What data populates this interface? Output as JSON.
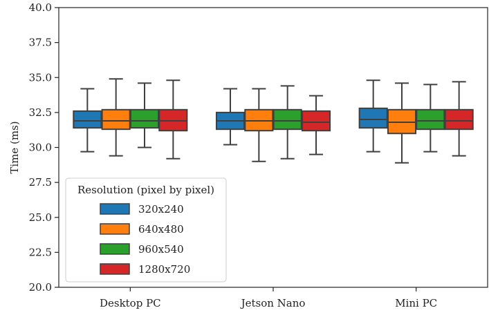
{
  "chart_data": {
    "type": "boxplot",
    "title": "",
    "xlabel": "",
    "ylabel": "Time (ms)",
    "ylim": [
      20.0,
      40.0
    ],
    "yticks": [
      "20.0",
      "22.5",
      "25.0",
      "27.5",
      "30.0",
      "32.5",
      "35.0",
      "37.5",
      "40.0"
    ],
    "grid": false,
    "categories": [
      "Desktop PC",
      "Jetson Nano",
      "Mini PC"
    ],
    "legend": {
      "title": "Resolution (pixel by pixel)",
      "placement": "lower-left"
    },
    "series": [
      {
        "name": "320x240",
        "color": "#1f77b4",
        "boxes": [
          {
            "whislo": 29.7,
            "q1": 31.4,
            "med": 31.9,
            "q3": 32.6,
            "whishi": 34.2
          },
          {
            "whislo": 30.2,
            "q1": 31.3,
            "med": 31.9,
            "q3": 32.5,
            "whishi": 34.2
          },
          {
            "whislo": 29.7,
            "q1": 31.4,
            "med": 32.0,
            "q3": 32.8,
            "whishi": 34.8
          }
        ]
      },
      {
        "name": "640x480",
        "color": "#ff7f0e",
        "boxes": [
          {
            "whislo": 29.4,
            "q1": 31.3,
            "med": 31.9,
            "q3": 32.7,
            "whishi": 34.9
          },
          {
            "whislo": 29.0,
            "q1": 31.2,
            "med": 31.9,
            "q3": 32.7,
            "whishi": 34.2
          },
          {
            "whislo": 28.9,
            "q1": 31.0,
            "med": 31.8,
            "q3": 32.7,
            "whishi": 34.6
          }
        ]
      },
      {
        "name": "960x540",
        "color": "#2ca02c",
        "boxes": [
          {
            "whislo": 30.0,
            "q1": 31.4,
            "med": 31.9,
            "q3": 32.7,
            "whishi": 34.6
          },
          {
            "whislo": 29.2,
            "q1": 31.3,
            "med": 31.9,
            "q3": 32.7,
            "whishi": 34.4
          },
          {
            "whislo": 29.7,
            "q1": 31.3,
            "med": 31.9,
            "q3": 32.7,
            "whishi": 34.5
          }
        ]
      },
      {
        "name": "1280x720",
        "color": "#d62728",
        "boxes": [
          {
            "whislo": 29.2,
            "q1": 31.2,
            "med": 31.9,
            "q3": 32.7,
            "whishi": 34.8
          },
          {
            "whislo": 29.5,
            "q1": 31.2,
            "med": 31.8,
            "q3": 32.6,
            "whishi": 33.7
          },
          {
            "whislo": 29.4,
            "q1": 31.3,
            "med": 31.9,
            "q3": 32.7,
            "whishi": 34.7
          }
        ]
      }
    ]
  }
}
